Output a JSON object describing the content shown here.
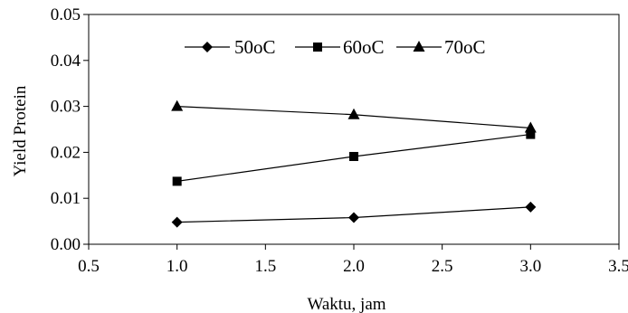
{
  "chart_data": {
    "type": "line",
    "title": "",
    "xlabel": "Waktu, jam",
    "ylabel": "Yield Protein",
    "xlim": [
      0.5,
      3.5
    ],
    "ylim": [
      0.0,
      0.05
    ],
    "x_ticks": [
      0.5,
      1.0,
      1.5,
      2.0,
      2.5,
      3.0,
      3.5
    ],
    "x_tick_labels": [
      "0.5",
      "1.0",
      "1.5",
      "2.0",
      "2.5",
      "3.0",
      "3.5"
    ],
    "y_ticks": [
      0.0,
      0.01,
      0.02,
      0.03,
      0.04,
      0.05
    ],
    "y_tick_labels": [
      "0.00",
      "0.01",
      "0.02",
      "0.03",
      "0.04",
      "0.05"
    ],
    "grid": false,
    "legend_position": "top",
    "series": [
      {
        "name": "50oC",
        "marker": "diamond",
        "x": [
          1.0,
          2.0,
          3.0
        ],
        "values": [
          0.0048,
          0.0058,
          0.0081
        ]
      },
      {
        "name": "60oC",
        "marker": "square",
        "x": [
          1.0,
          2.0,
          3.0
        ],
        "values": [
          0.0137,
          0.0191,
          0.0239
        ]
      },
      {
        "name": "70oC",
        "marker": "triangle",
        "x": [
          1.0,
          2.0,
          3.0
        ],
        "values": [
          0.03,
          0.0282,
          0.0253
        ]
      }
    ],
    "colors": {
      "line": "#000000",
      "marker": "#000000",
      "axis": "#000000"
    }
  }
}
